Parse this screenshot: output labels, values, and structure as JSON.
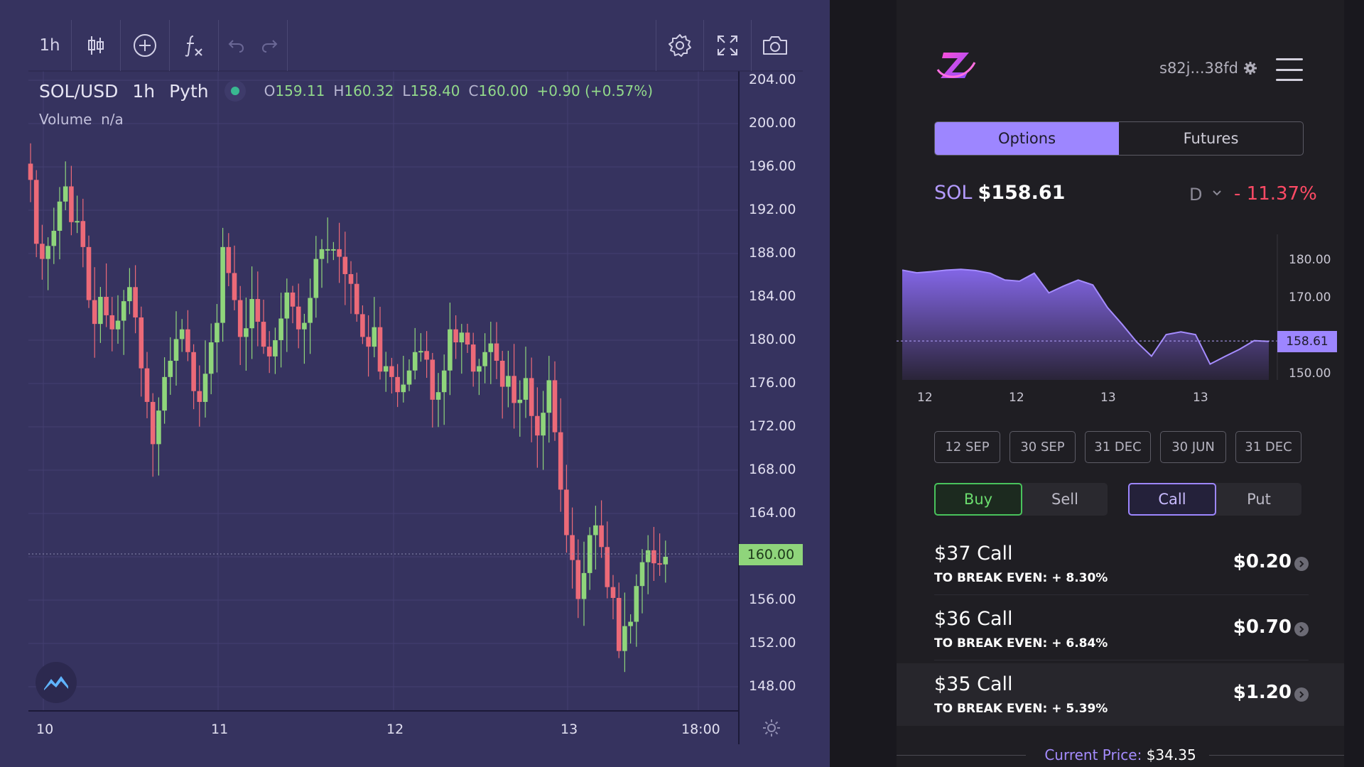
{
  "toolbar": {
    "interval": "1h",
    "icons": [
      "candles-icon",
      "add-indicator-icon",
      "function-icon",
      "undo-icon",
      "redo-icon",
      "settings-icon",
      "fullscreen-icon",
      "camera-icon"
    ]
  },
  "legend": {
    "symbol": "SOL/USD",
    "interval": "1h",
    "source": "Pyth",
    "open": "159.11",
    "high": "160.32",
    "low": "158.40",
    "close": "160.00",
    "change": "+0.90 (+0.57%)",
    "volume_label": "Volume",
    "volume_value": "n/a",
    "o_prefix": "O",
    "h_prefix": "H",
    "l_prefix": "L",
    "c_prefix": "C"
  },
  "price_axis": [
    "204.00",
    "200.00",
    "196.00",
    "192.00",
    "188.00",
    "184.00",
    "180.00",
    "176.00",
    "172.00",
    "168.00",
    "164.00",
    "160.00",
    "156.00",
    "152.00",
    "148.00"
  ],
  "current_price_tag": "160.00",
  "time_axis": [
    "10",
    "11",
    "12",
    "13",
    "18:00"
  ],
  "colors": {
    "up": "#8fd57b",
    "down": "#ec6a78",
    "chart_bg": "#36335f",
    "accent": "#9d86ff",
    "negative": "#ff4a65"
  },
  "chart_data": [
    {
      "type": "candlestick",
      "title": "",
      "symbol": "SOL/USD",
      "interval": "1h",
      "ylim": [
        146,
        206
      ],
      "y_ticks": [
        148,
        152,
        156,
        160,
        164,
        168,
        172,
        176,
        180,
        184,
        188,
        192,
        196,
        200,
        204
      ],
      "x_ticks": [
        "10",
        "11",
        "12",
        "13",
        "18:00"
      ],
      "reference_line": 160.0,
      "closes": [
        194.8,
        188.9,
        187.5,
        188.7,
        190.1,
        192.8,
        194.2,
        190.9,
        191.0,
        188.6,
        183.7,
        181.5,
        184.0,
        182.3,
        181.0,
        181.8,
        183.6,
        184.9,
        182.1,
        177.4,
        174.3,
        170.4,
        173.5,
        176.6,
        178.1,
        180.1,
        181.0,
        178.9,
        175.3,
        174.3,
        176.9,
        179.8,
        181.6,
        188.6,
        186.2,
        183.7,
        180.3,
        181.1,
        183.8,
        181.7,
        179.4,
        178.5,
        180.0,
        182.0,
        184.4,
        183.1,
        181.0,
        181.6,
        183.9,
        187.5,
        188.4,
        188.4,
        188.4,
        187.7,
        186.1,
        185.2,
        182.4,
        180.3,
        179.4,
        181.2,
        177.1,
        177.6,
        176.6,
        175.2,
        175.9,
        177.2,
        178.9,
        179.0,
        178.2,
        174.5,
        175.2,
        177.2,
        181.0,
        179.8,
        180.7,
        179.6,
        177.1,
        177.6,
        178.9,
        179.7,
        178.1,
        175.7,
        176.7,
        174.2,
        174.5,
        176.5,
        173.0,
        171.2,
        173.3,
        176.3,
        171.5,
        166.2,
        162.0,
        159.7,
        156.1,
        158.5,
        162.0,
        162.9,
        160.9,
        157.2,
        156.2,
        151.3,
        153.6,
        154.0,
        157.3,
        159.5,
        160.6,
        159.4,
        159.3,
        160.0
      ],
      "x_start_label": "10",
      "bar_interval": "1h"
    },
    {
      "type": "area",
      "title": "",
      "x_ticks": [
        "12",
        "12",
        "13",
        "13"
      ],
      "y_ticks": [
        150,
        170,
        180
      ],
      "ylim": [
        144,
        186
      ],
      "reference_line": 158.61,
      "values": [
        177.3,
        176.6,
        176.9,
        177.3,
        177.5,
        177.2,
        176.5,
        174.7,
        174.4,
        176.5,
        171.3,
        173.1,
        174.7,
        173.4,
        167.4,
        163.0,
        158.3,
        154.6,
        160.3,
        161.0,
        160.3,
        152.5,
        154.5,
        156.4,
        158.7,
        158.5
      ]
    }
  ],
  "panel": {
    "wallet": "s82j...38fd",
    "tabs": [
      "Options",
      "Futures"
    ],
    "active_tab": "Options",
    "ticker": "SOL",
    "price": "$158.61",
    "period": "D",
    "change": "- 11.37%",
    "mini_chart": {
      "price_tag": "158.61",
      "y_labels": [
        "180.00",
        "170.00",
        "150.00"
      ],
      "x_labels": [
        "12",
        "12",
        "13",
        "13"
      ]
    },
    "expiries": [
      "12 SEP",
      "30 SEP",
      "31 DEC",
      "30 JUN",
      "31 DEC"
    ],
    "side": [
      "Buy",
      "Sell"
    ],
    "type": [
      "Call",
      "Put"
    ],
    "options": [
      {
        "title": "$37 Call",
        "break_even": "TO BREAK EVEN: + 8.30%",
        "price": "$0.20"
      },
      {
        "title": "$36 Call",
        "break_even": "TO BREAK EVEN: + 6.84%",
        "price": "$0.70"
      },
      {
        "title": "$35 Call",
        "break_even": "TO BREAK EVEN: + 5.39%",
        "price": "$1.20"
      }
    ],
    "current_price_label": "Current Price:",
    "current_price_value": "$34.35"
  }
}
